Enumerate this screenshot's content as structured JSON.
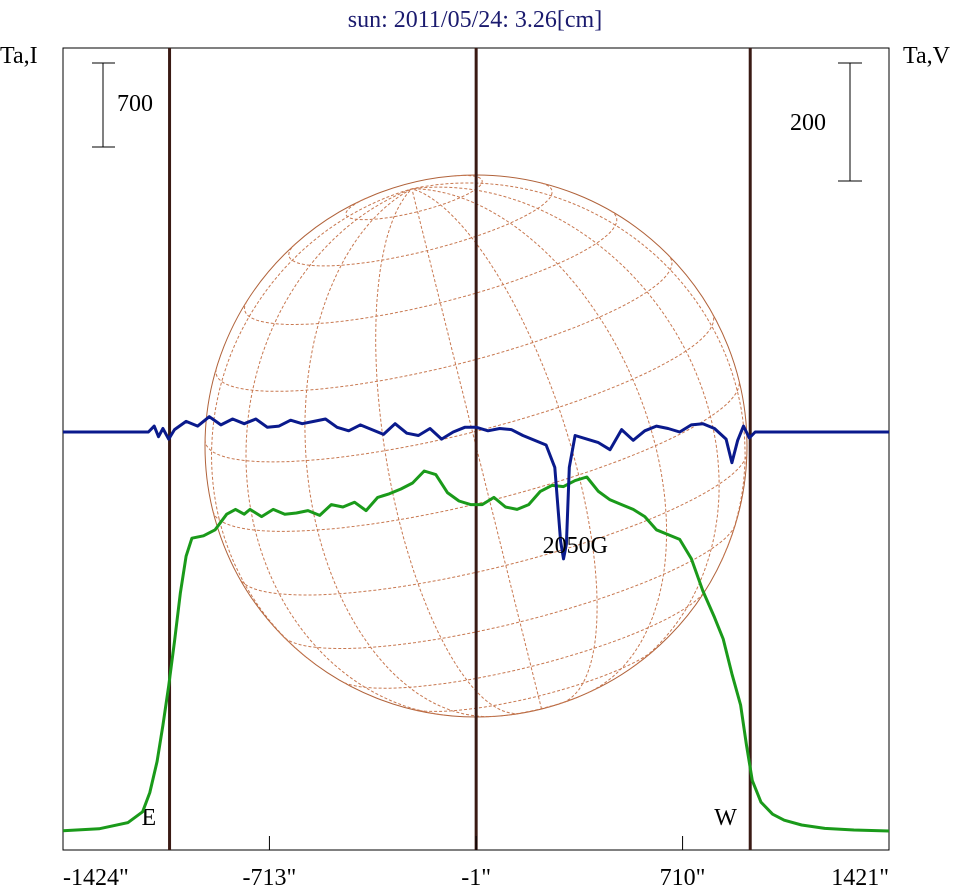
{
  "chart_data": {
    "type": "line",
    "title": "sun: 2011/05/24: 3.26[cm]",
    "left_axis_label": "Ta,I",
    "right_axis_label": "Ta,V",
    "x_ticks": [
      "-1424\"",
      "-713\"",
      "-1\"",
      "710\"",
      "1421\""
    ],
    "x_tick_values": [
      -1424,
      -713,
      -1,
      710,
      1421
    ],
    "xlim": [
      -1424,
      1421
    ],
    "i_scale_bar_label": "700",
    "v_scale_bar_label": "200",
    "i_scale_bar_value": 700,
    "v_scale_bar_value": 200,
    "limb_markers": [
      {
        "label": "E",
        "x": -1057
      },
      {
        "label": "W",
        "x": 943
      }
    ],
    "center_marker_x": -1,
    "solar_disk_radius_arcsec": 943,
    "annotation": {
      "text": "2050G",
      "x": 320
    },
    "colors": {
      "title": "#1a1a6e",
      "stokes_i": "#1a9a1a",
      "stokes_v": "#0a1a8c",
      "limb_lines": "#3a1a14",
      "disk": "#b0623a"
    },
    "series": [
      {
        "key": "stokes_i",
        "points": [
          [
            -1424,
            2.0
          ],
          [
            -1300,
            18
          ],
          [
            -1200,
            70
          ],
          [
            -1150,
            160
          ],
          [
            -1125,
            320
          ],
          [
            -1100,
            580
          ],
          [
            -1080,
            880
          ],
          [
            -1060,
            1210
          ],
          [
            -1040,
            1580
          ],
          [
            -1020,
            1980
          ],
          [
            -1000,
            2290
          ],
          [
            -980,
            2440
          ],
          [
            -940,
            2460
          ],
          [
            -900,
            2510
          ],
          [
            -860,
            2640
          ],
          [
            -830,
            2680
          ],
          [
            -800,
            2640
          ],
          [
            -780,
            2680
          ],
          [
            -740,
            2620
          ],
          [
            -700,
            2680
          ],
          [
            -660,
            2640
          ],
          [
            -620,
            2650
          ],
          [
            -580,
            2670
          ],
          [
            -540,
            2630
          ],
          [
            -500,
            2720
          ],
          [
            -460,
            2700
          ],
          [
            -420,
            2740
          ],
          [
            -380,
            2670
          ],
          [
            -340,
            2780
          ],
          [
            -300,
            2810
          ],
          [
            -260,
            2850
          ],
          [
            -220,
            2900
          ],
          [
            -180,
            3000
          ],
          [
            -140,
            2970
          ],
          [
            -100,
            2820
          ],
          [
            -60,
            2750
          ],
          [
            -20,
            2720
          ],
          [
            20,
            2720
          ],
          [
            60,
            2780
          ],
          [
            100,
            2700
          ],
          [
            140,
            2680
          ],
          [
            180,
            2720
          ],
          [
            220,
            2830
          ],
          [
            260,
            2880
          ],
          [
            300,
            2870
          ],
          [
            340,
            2920
          ],
          [
            380,
            2950
          ],
          [
            420,
            2830
          ],
          [
            460,
            2760
          ],
          [
            500,
            2720
          ],
          [
            540,
            2680
          ],
          [
            580,
            2620
          ],
          [
            620,
            2510
          ],
          [
            660,
            2470
          ],
          [
            700,
            2430
          ],
          [
            740,
            2270
          ],
          [
            780,
            2000
          ],
          [
            820,
            1780
          ],
          [
            850,
            1600
          ],
          [
            880,
            1310
          ],
          [
            910,
            1050
          ],
          [
            930,
            720
          ],
          [
            950,
            420
          ],
          [
            980,
            240
          ],
          [
            1020,
            140
          ],
          [
            1060,
            90
          ],
          [
            1120,
            50
          ],
          [
            1200,
            22
          ],
          [
            1300,
            8
          ],
          [
            1421,
            0
          ]
        ]
      },
      {
        "key": "stokes_v",
        "points": [
          [
            -1424,
            0
          ],
          [
            -1130,
            0
          ],
          [
            -1110,
            10
          ],
          [
            -1095,
            -8
          ],
          [
            -1080,
            6
          ],
          [
            -1060,
            -12
          ],
          [
            -1040,
            4
          ],
          [
            -1000,
            18
          ],
          [
            -960,
            10
          ],
          [
            -920,
            26
          ],
          [
            -880,
            12
          ],
          [
            -840,
            22
          ],
          [
            -800,
            14
          ],
          [
            -760,
            22
          ],
          [
            -720,
            8
          ],
          [
            -680,
            10
          ],
          [
            -640,
            20
          ],
          [
            -600,
            14
          ],
          [
            -560,
            18
          ],
          [
            -520,
            22
          ],
          [
            -480,
            8
          ],
          [
            -440,
            2
          ],
          [
            -400,
            12
          ],
          [
            -360,
            4
          ],
          [
            -320,
            -4
          ],
          [
            -280,
            14
          ],
          [
            -240,
            -2
          ],
          [
            -200,
            -6
          ],
          [
            -160,
            6
          ],
          [
            -120,
            -12
          ],
          [
            -80,
            0
          ],
          [
            -40,
            8
          ],
          [
            0,
            8
          ],
          [
            40,
            2
          ],
          [
            80,
            6
          ],
          [
            120,
            4
          ],
          [
            160,
            -6
          ],
          [
            200,
            -14
          ],
          [
            240,
            -22
          ],
          [
            270,
            -60
          ],
          [
            290,
            -185
          ],
          [
            300,
            -215
          ],
          [
            310,
            -190
          ],
          [
            320,
            -60
          ],
          [
            340,
            -6
          ],
          [
            380,
            -12
          ],
          [
            420,
            -18
          ],
          [
            460,
            -30
          ],
          [
            500,
            4
          ],
          [
            540,
            -14
          ],
          [
            580,
            2
          ],
          [
            620,
            10
          ],
          [
            660,
            6
          ],
          [
            700,
            0
          ],
          [
            740,
            12
          ],
          [
            780,
            14
          ],
          [
            820,
            6
          ],
          [
            860,
            -12
          ],
          [
            880,
            -52
          ],
          [
            900,
            -14
          ],
          [
            920,
            10
          ],
          [
            940,
            -10
          ],
          [
            960,
            0
          ],
          [
            1421,
            0
          ]
        ]
      }
    ]
  }
}
